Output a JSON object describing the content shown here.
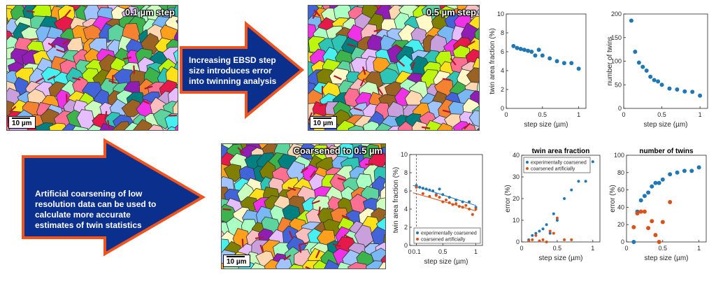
{
  "maps": {
    "map1_label": "0.1 µm step",
    "map2_label": "0.5 µm step",
    "map3_label": "Coarsened to 0.5 µm",
    "scale_label": "10 µm"
  },
  "arrows": {
    "top_text": [
      "Increasing EBSD step",
      "size introduces error",
      "into twinning analysis"
    ],
    "bottom_text": [
      "Artificial coarsening of low",
      "resolution data can be used to",
      "calculate more accurate",
      "estimates of twin statistics"
    ],
    "fill_color": "#0a2f8c",
    "border_color": "#f0541e"
  },
  "colors": {
    "blue": "#1f77b4",
    "orange": "#d95319"
  },
  "chart_data": [
    {
      "id": "top_twin_area",
      "type": "scatter",
      "title": "",
      "xlabel": "step size (µm)",
      "ylabel": "twin area fraction (%)",
      "xlim": [
        0,
        1.1
      ],
      "ylim": [
        0,
        10
      ],
      "xticks": [
        0,
        0.5,
        1
      ],
      "yticks": [
        0,
        2,
        4,
        6,
        8,
        10
      ],
      "series": [
        {
          "color": "#1f77b4",
          "x": [
            0.1,
            0.15,
            0.2,
            0.25,
            0.3,
            0.35,
            0.4,
            0.45,
            0.5,
            0.6,
            0.7,
            0.8,
            0.9,
            1.0
          ],
          "y": [
            6.6,
            6.4,
            6.3,
            6.2,
            6.1,
            6.0,
            5.6,
            6.2,
            5.6,
            5.3,
            5.0,
            4.8,
            4.8,
            4.2
          ]
        }
      ]
    },
    {
      "id": "top_num_twins",
      "type": "scatter",
      "title": "",
      "xlabel": "step size (µm)",
      "ylabel": "number of twins",
      "xlim": [
        0,
        1.1
      ],
      "ylim": [
        0,
        200
      ],
      "xticks": [
        0,
        0.5,
        1
      ],
      "yticks": [
        0,
        50,
        100,
        150,
        200
      ],
      "series": [
        {
          "color": "#1f77b4",
          "x": [
            0.1,
            0.15,
            0.2,
            0.25,
            0.3,
            0.35,
            0.4,
            0.45,
            0.5,
            0.6,
            0.7,
            0.8,
            0.9,
            1.0
          ],
          "y": [
            186,
            120,
            97,
            88,
            80,
            67,
            60,
            57,
            50,
            42,
            40,
            36,
            35,
            27
          ]
        }
      ]
    },
    {
      "id": "bottom_twin_area",
      "type": "scatter",
      "title": "",
      "xlabel": "step size (µm)",
      "ylabel": "twin area fraction (%)",
      "xlim": [
        0,
        1.1
      ],
      "ylim": [
        0,
        10
      ],
      "xticks": [
        0,
        0.1,
        0.5,
        1
      ],
      "xticklabels": [
        "0",
        "0.1",
        "0.5",
        "1"
      ],
      "yticks": [
        0,
        2,
        4,
        6,
        8,
        10
      ],
      "vline": 0.1,
      "legend_position": "bottom-right",
      "series": [
        {
          "name": "experimentally coarsened",
          "color": "#1f77b4",
          "x": [
            0.1,
            0.15,
            0.2,
            0.25,
            0.3,
            0.35,
            0.4,
            0.45,
            0.5,
            0.6,
            0.7,
            0.8,
            0.9,
            1.0
          ],
          "y": [
            6.6,
            6.4,
            6.3,
            6.2,
            6.1,
            6.0,
            5.6,
            6.2,
            5.6,
            5.3,
            5.0,
            4.8,
            4.8,
            4.2
          ]
        },
        {
          "name": "coarsened artificially",
          "color": "#d95319",
          "x": [
            0.1,
            0.2,
            0.3,
            0.4,
            0.45,
            0.5,
            0.55,
            0.6,
            0.65,
            0.7,
            0.75,
            0.8,
            0.85,
            0.9,
            0.95,
            1.0
          ],
          "y": [
            6.4,
            5.7,
            5.4,
            5.5,
            5.3,
            4.8,
            5.0,
            4.7,
            4.5,
            4.6,
            4.3,
            4.2,
            4.4,
            4.0,
            3.4,
            4.0
          ],
          "fit": [
            [
              0.05,
              5.8
            ],
            [
              1.0,
              3.8
            ]
          ]
        }
      ],
      "fits": [
        {
          "color": "#1f77b4",
          "from": [
            0.05,
            6.6
          ],
          "to": [
            1.0,
            4.4
          ]
        }
      ]
    },
    {
      "id": "bottom_err_area",
      "type": "scatter",
      "title": "twin area fraction",
      "xlabel": "step size (µm)",
      "ylabel": "error (%)",
      "xlim": [
        0,
        1.1
      ],
      "ylim": [
        0,
        40
      ],
      "xticks": [
        0,
        0.5,
        1
      ],
      "yticks": [
        0,
        10,
        20,
        30,
        40
      ],
      "legend_position": "top-left",
      "series": [
        {
          "name": "experimentally coarsened",
          "color": "#1f77b4",
          "x": [
            0.1,
            0.15,
            0.2,
            0.25,
            0.3,
            0.35,
            0.4,
            0.45,
            0.5,
            0.6,
            0.7,
            0.8,
            0.9,
            1.0
          ],
          "y": [
            1,
            3,
            4,
            5,
            6,
            8,
            4,
            13,
            10,
            20,
            24,
            28,
            28,
            37
          ]
        },
        {
          "name": "coarsened artificially",
          "color": "#d95319",
          "x": [
            0.1,
            0.15,
            0.2,
            0.25,
            0.3,
            0.35,
            0.4,
            0.45,
            0.5,
            0.6,
            0.7
          ],
          "y": [
            0.5,
            1,
            3,
            0.5,
            1,
            0,
            5,
            4,
            11,
            1,
            1
          ]
        }
      ]
    },
    {
      "id": "bottom_err_num",
      "type": "scatter",
      "title": "number of twins",
      "xlabel": "step size (µm)",
      "ylabel": "error (%)",
      "xlim": [
        0,
        1.1
      ],
      "ylim": [
        0,
        100
      ],
      "xticks": [
        0,
        0.5,
        1
      ],
      "yticks": [
        0,
        20,
        40,
        60,
        80,
        100
      ],
      "series": [
        {
          "color": "#1f77b4",
          "x": [
            0.1,
            0.15,
            0.2,
            0.25,
            0.3,
            0.35,
            0.4,
            0.45,
            0.5,
            0.6,
            0.7,
            0.8,
            0.9,
            1.0
          ],
          "y": [
            0,
            35,
            48,
            53,
            57,
            64,
            68,
            68,
            72,
            78,
            80,
            82,
            82,
            86
          ]
        },
        {
          "color": "#d95319",
          "x": [
            0.1,
            0.15,
            0.2,
            0.25,
            0.3,
            0.35,
            0.4,
            0.45,
            0.5,
            0.6
          ],
          "y": [
            17,
            33,
            35,
            35,
            16,
            24,
            8,
            0,
            23,
            46
          ]
        }
      ]
    }
  ]
}
